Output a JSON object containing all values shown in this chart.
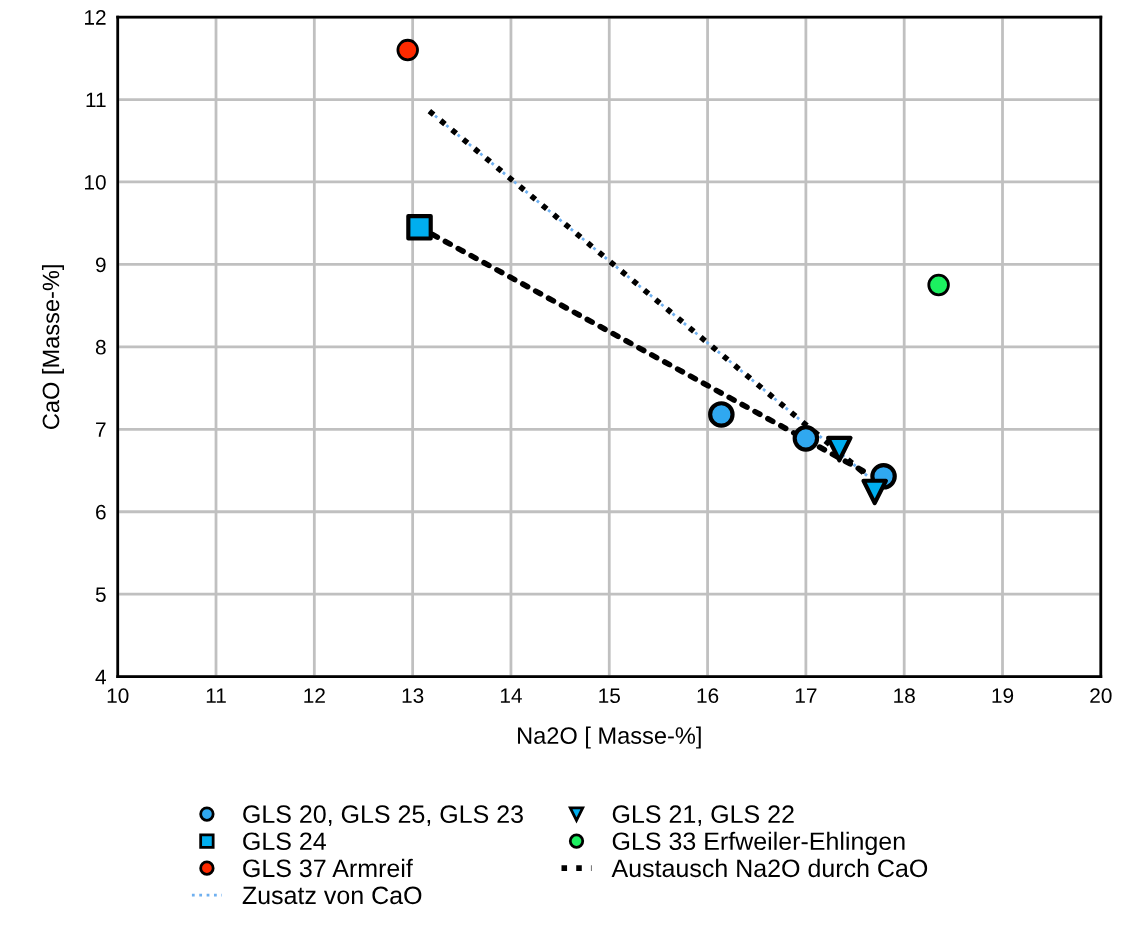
{
  "chart_data": {
    "type": "scatter",
    "xlabel": "Na2O [ Masse-%]",
    "ylabel": "CaO [Masse-%]",
    "xlim": [
      10,
      20
    ],
    "xticks": [
      10,
      11,
      12,
      13,
      14,
      15,
      16,
      17,
      18,
      19,
      20
    ],
    "ylim": [
      4,
      12
    ],
    "yticks": [
      4,
      5,
      6,
      7,
      8,
      9,
      10,
      11,
      12
    ],
    "grid": true,
    "legend": "bottom",
    "series": [
      {
        "name": "GLS 20, GLS 25, GLS 23",
        "color": "#30a8f0",
        "marker": "circle",
        "x": [
          16.14,
          17.0,
          17.79
        ],
        "values": [
          7.18,
          6.89,
          6.43
        ]
      },
      {
        "name": "GLS 24",
        "color": "#00aeef",
        "marker": "square",
        "x": [
          13.07
        ],
        "values": [
          9.45
        ]
      },
      {
        "name": "GLS 37 Armreif",
        "color": "#ff2a00",
        "marker": "circle",
        "x": [
          12.95
        ],
        "values": [
          11.6
        ]
      },
      {
        "name": "Zusatz von CaO",
        "type": "line",
        "color": "#6fb0f0",
        "line_style": "dotted",
        "marker": "none",
        "x": [
          13.17,
          17.63
        ],
        "values": [
          10.86,
          6.43
        ]
      },
      {
        "name": "GLS 21, GLS 22",
        "color": "#00aeef",
        "marker": "triangle",
        "x": [
          17.34,
          17.7
        ],
        "values": [
          6.76,
          6.24
        ]
      },
      {
        "name": "GLS 33 Erfweiler-Ehlingen",
        "color": "#1cf060",
        "marker": "circle",
        "x": [
          18.35
        ],
        "values": [
          8.75
        ]
      },
      {
        "name": "Austausch Na2O durch CaO",
        "type": "line",
        "color": "#000000",
        "line_style": "dotted",
        "marker": "none",
        "x": [
          13.17,
          17.63
        ],
        "values": [
          10.86,
          6.43
        ]
      },
      {
        "type": "line",
        "color": "#000000",
        "line_style": "dotted",
        "marker": "none",
        "x": [
          13.07,
          17.65
        ],
        "values": [
          9.45,
          6.45
        ]
      }
    ]
  }
}
